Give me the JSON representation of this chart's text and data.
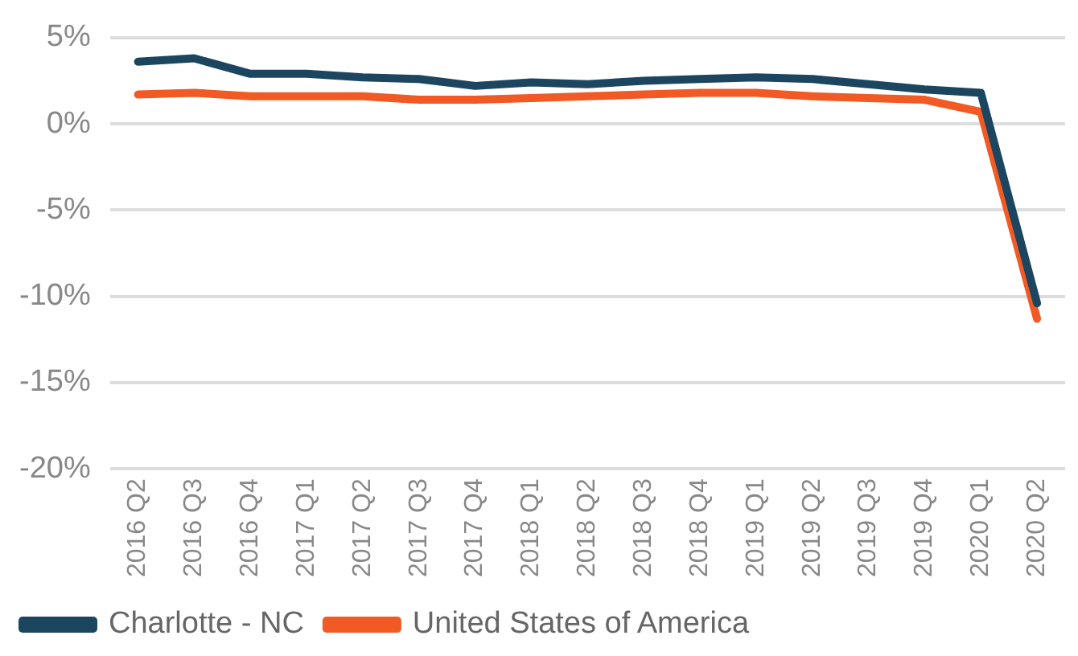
{
  "chart_data": {
    "type": "line",
    "categories": [
      "2016 Q2",
      "2016 Q3",
      "2016 Q4",
      "2017 Q1",
      "2017 Q2",
      "2017 Q3",
      "2017 Q4",
      "2018 Q1",
      "2018 Q2",
      "2018 Q3",
      "2018 Q4",
      "2019 Q1",
      "2019 Q2",
      "2019 Q3",
      "2019 Q4",
      "2020 Q1",
      "2020 Q2"
    ],
    "series": [
      {
        "name": "Charlotte - NC",
        "color": "#1c4560",
        "values": [
          3.6,
          3.8,
          2.9,
          2.9,
          2.7,
          2.6,
          2.2,
          2.4,
          2.3,
          2.5,
          2.6,
          2.7,
          2.6,
          2.3,
          2.0,
          1.8,
          -10.4
        ]
      },
      {
        "name": "United States of America",
        "color": "#f15a24",
        "values": [
          1.7,
          1.8,
          1.6,
          1.6,
          1.6,
          1.4,
          1.4,
          1.5,
          1.6,
          1.7,
          1.8,
          1.8,
          1.6,
          1.5,
          1.4,
          0.7,
          -11.3
        ]
      }
    ],
    "ylim": [
      -20,
      5
    ],
    "yticks": [
      {
        "value": -20,
        "label": "-20%"
      },
      {
        "value": -15,
        "label": "-15%"
      },
      {
        "value": -10,
        "label": "-10%"
      },
      {
        "value": -5,
        "label": "-5%"
      },
      {
        "value": 0,
        "label": "0%"
      },
      {
        "value": 5,
        "label": "5%"
      }
    ],
    "grid": "y",
    "legend": "bottom left",
    "marker": "none",
    "line_style": "solid"
  }
}
